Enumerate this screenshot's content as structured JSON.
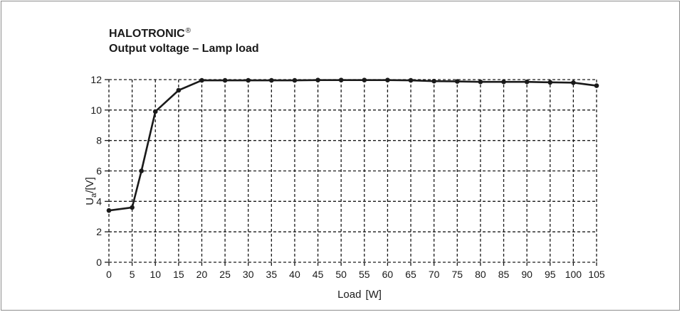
{
  "chart_data": {
    "type": "line",
    "title": "HALOTRONIC",
    "title_mark": "®",
    "subtitle": "Output voltage – Lamp load",
    "xlabel": "Load",
    "xlabel_unit": "[W]",
    "ylabel": "U",
    "ylabel_sub": "a",
    "ylabel_unit": "/[V]",
    "xlim": [
      0,
      105
    ],
    "ylim": [
      0,
      12
    ],
    "xticks": [
      0,
      5,
      10,
      15,
      20,
      25,
      30,
      35,
      40,
      45,
      50,
      55,
      60,
      65,
      70,
      75,
      80,
      85,
      90,
      95,
      100,
      105
    ],
    "yticks": [
      0,
      2,
      4,
      6,
      8,
      10,
      12
    ],
    "grid": true,
    "grid_style": "dashed",
    "line_color": "#1a1a1a",
    "series": [
      {
        "x": [
          0,
          5,
          7,
          10,
          15,
          20,
          25,
          30,
          35,
          40,
          45,
          50,
          55,
          60,
          65,
          70,
          75,
          80,
          85,
          90,
          95,
          100,
          105
        ],
        "y": [
          3.4,
          3.6,
          6.0,
          9.9,
          11.3,
          11.95,
          11.95,
          11.95,
          11.95,
          11.95,
          11.97,
          11.97,
          11.97,
          11.97,
          11.95,
          11.9,
          11.88,
          11.85,
          11.85,
          11.85,
          11.82,
          11.8,
          11.6
        ]
      }
    ]
  }
}
